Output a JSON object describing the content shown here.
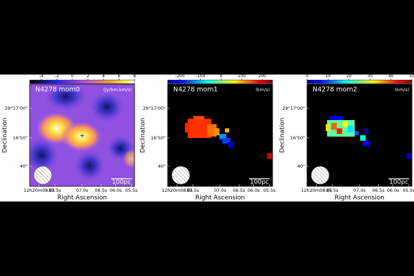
{
  "panels": [
    {
      "title": "N4278 mom0",
      "unit": "(Jy/bm.km/s)",
      "colorbar": {
        "lim": [
          -5.5,
          8
        ],
        "ticks": [
          -4,
          -2,
          0,
          2,
          4,
          6,
          8
        ]
      }
    },
    {
      "title": "N4278 mom1",
      "unit": "(km/s)",
      "colorbar": {
        "lim": [
          -260,
          250
        ],
        "ticks": [
          -200,
          -100,
          0,
          100,
          200
        ]
      }
    },
    {
      "title": "N4278 mom2",
      "unit": "(km/s)",
      "colorbar": {
        "lim": [
          0,
          50
        ],
        "ticks": [
          0,
          10,
          20,
          30,
          40,
          50
        ]
      }
    }
  ],
  "y_axis_label": "Declination",
  "x_axis_label": "Right Ascension",
  "yticks": [
    "29°17'00\"",
    "16'50\"",
    "40\""
  ],
  "xticks": [
    "12h20m08.0s",
    "07.5s",
    "07.0s",
    "06.5s",
    "06.0s",
    "05.5s"
  ],
  "scale_bar": "100pc"
}
